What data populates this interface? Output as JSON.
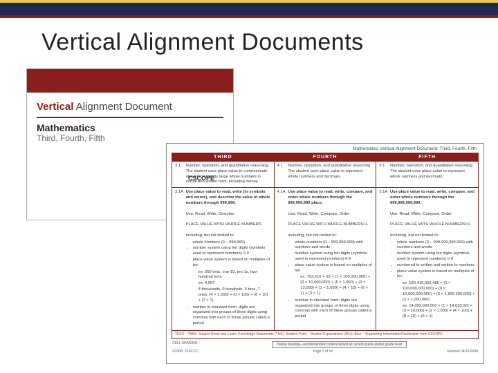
{
  "colors": {
    "brand_red": "#8a1e1a",
    "band_navy": "#1f2a52",
    "band_gold": "#efc94c",
    "text_dark": "#222222",
    "text_light": "#666666",
    "border_gray": "#888888",
    "background": "#ffffff",
    "logo_orange": "#d97b1c",
    "cell_box_bg": "#f5f5f5"
  },
  "slide": {
    "title": "Vertical Alignment Documents",
    "title_fontsize": 34
  },
  "left_doc": {
    "title_emph": "Vertical",
    "title_rest": " Alignment Document",
    "subject": "Mathematics",
    "grades": "Third, Fourth, Fifth",
    "logo_text": "CSCOPE"
  },
  "right_doc": {
    "heading": "Mathematics Vertical Alignment Document: Third, Fourth, Fifth",
    "columns": [
      "THIRD",
      "FOURTH",
      "FIFTH"
    ],
    "row1": {
      "third_num": "3.1",
      "fourth_num": "4.1",
      "fifth_num": "5.1",
      "third_text": "Number, operation, and quantitative reasoning. The student uses place value to communicate about increasingly large whole numbers in verbal and written form, including money.",
      "fourth_text": "Number, operation, and quantitative reasoning. The student uses place value to represent whole numbers and decimals.",
      "fifth_text": "Number, operation, and quantitative reasoning. The student uses place value to represent whole numbers and decimals."
    },
    "row2": {
      "third_num": "3.1A",
      "fourth_num": "4.1A",
      "fifth_num": "5.1A",
      "third_bold": "Use place value to read, write (in symbols and words), and describe the value of whole numbers through 999,999.",
      "fourth_bold": "Use place value to read, write, compare, and order whole numbers through the 999,999,999 place.",
      "fifth_bold": "Use place value to read, write, compare, and order whole numbers through the 999,999,999,999.",
      "third_use": "Use: Read, Write, Describe",
      "fourth_use": "Use: Read, Write, Compare, Order",
      "fifth_use": "Use: Read, Write, Compare, Order",
      "third_pv": "PLACE VALUE WITH WHOLE NUMBERS",
      "fourth_pv": "PLACE VALUE WITH WHOLE NUMBERS<1",
      "fifth_pv": "PLACE VALUE WITH WHOLE NUMBERS<1",
      "including": "Including, but not limited to:",
      "third_bullets": [
        "whole numbers (0 – 999,999)",
        "number system using ten digits (symbols used to represent numbers) 0-9",
        "place value system is based on multiples of ten"
      ],
      "third_sub": [
        "ex: 260 tens, one-10, ten-1s, two-hundred tens",
        "ex: 4,067",
        "4 thousands, 0 hundreds, 6 tens, 7 ones; (4 × 1,000) + (0 × 100) + (6 × 10) + (7 × 1)"
      ],
      "third_tail": [
        "number in standard form: digits are organized into groups of three digits using commas with each of these groups called a period"
      ],
      "fourth_bullets": [
        "whole numbers (0 – 999,999,999) with numbers and words",
        "number system using ten digits (symbols used to represent numbers) 0-9",
        "place value system is based on multiples of ten"
      ],
      "fourth_sub": [
        "ex: 753,216 = 53 × (1 × 100,000,000) + (9 × 10,000,000) + (5 × 1,000) + (3 × 13,000) + (1 × 1,000) + (4 × 10) + (6 × 1) + (3 × 1)"
      ],
      "fourth_tail": [
        "number in standard form: digits are organized into groups of three digits using commas with each of these groups called a period"
      ],
      "fifth_bullets": [
        "whole numbers (0 – 999,999,999,999) with numbers and words",
        "number system using ten digits (symbols used to represent numbers) 0-9",
        "numbered to written and written to numbers",
        "place value system is based on multiples of ten"
      ],
      "fifth_sub": [
        "ex: 190,410,053,485 = (1 × 100,000,000,000) + (9 × 10,000,000,000) + (3 × 1,900,200,000) + (3 × 1,000,000)",
        "ex: 14,093,000,000 = (1 × 14,030,00) + (3 × 10,000) + (2 × 1,000) + (4 × 100) + (8 × 10) + (5 × 1)"
      ]
    },
    "footer_row": "TEKS – TAKS:  Subject Know and Learn; Knowledge Statements (TKS); Student Point – Student Expectations (SEs); Blue – Supporting Information/Clarification from CSCOPE",
    "footnote_left": "CELL SHADING—",
    "footnote_box": "Yellow shading—recommended content tested at current grade and/or grade level",
    "copyright": "©2008, TESCCC",
    "page": "Page 2 of 54",
    "revised": "Revised 04/15/2008"
  }
}
